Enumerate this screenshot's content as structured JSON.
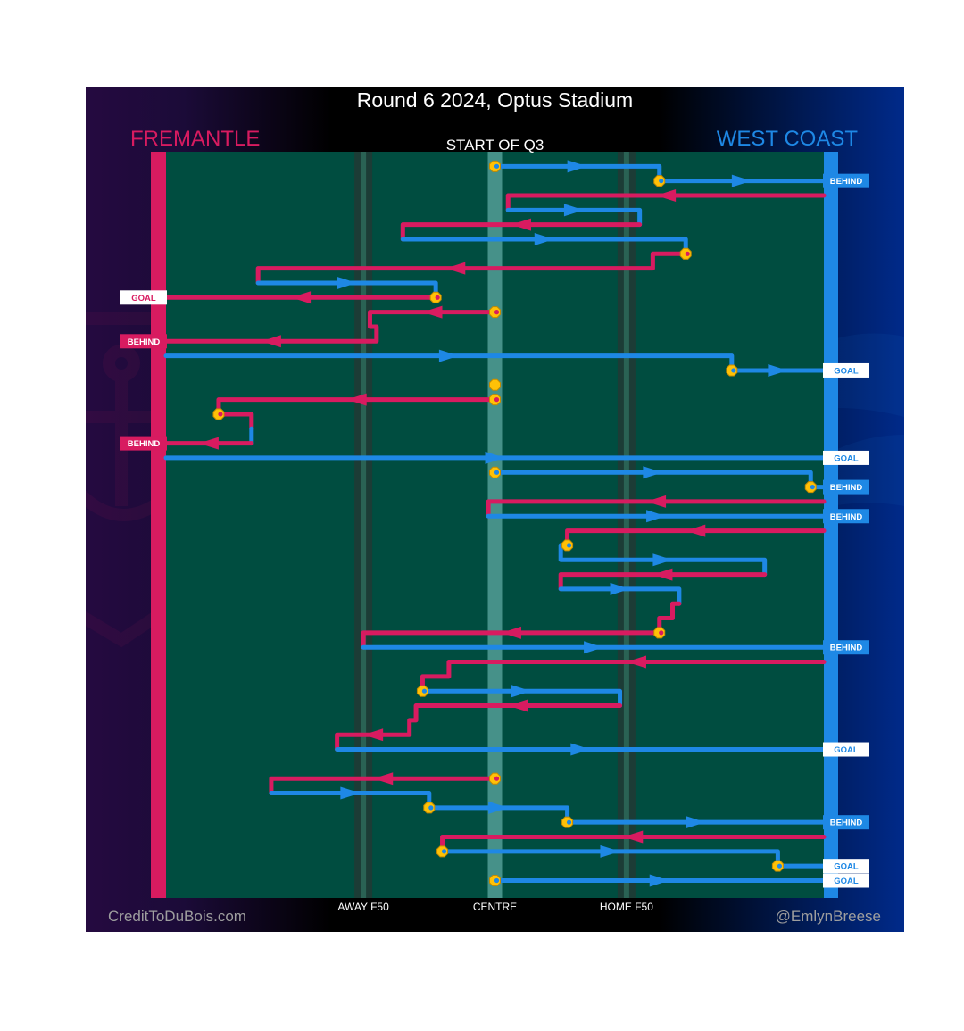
{
  "title": "Round 6 2024, Optus Stadium",
  "teams": {
    "home": {
      "name": "FREMANTLE",
      "color": "#d81b60"
    },
    "away": {
      "name": "WEST COAST",
      "color": "#1e88e5"
    }
  },
  "quarter_label": "START OF Q3",
  "credits": {
    "left": "CreditToDuBois.com",
    "right": "@EmlynBreese"
  },
  "colors": {
    "field": "#004d40",
    "ball_marker": "#ffc107",
    "centre_band": "#80cbc4"
  },
  "chart_data": {
    "type": "line",
    "title": "Round 6 2024, Optus Stadium",
    "subtitle": "START OF Q3",
    "x_ticks": [
      {
        "label": "AWAY F50",
        "value": 0.3
      },
      {
        "label": "CENTRE",
        "value": 0.5
      },
      {
        "label": "HOME F50",
        "value": 0.7
      }
    ],
    "xlim": [
      0,
      1
    ],
    "chains": [
      {
        "team": "away",
        "points": [
          [
            0.5,
            1
          ],
          [
            0.75,
            1
          ],
          [
            0.75,
            2
          ],
          [
            1,
            2
          ]
        ],
        "result": "BEHIND"
      },
      {
        "team": "home",
        "points": [
          [
            1,
            3
          ],
          [
            0.52,
            3
          ],
          [
            0.52,
            4
          ]
        ]
      },
      {
        "team": "away",
        "points": [
          [
            0.52,
            4
          ],
          [
            0.72,
            4
          ],
          [
            0.72,
            5
          ]
        ]
      },
      {
        "team": "home",
        "points": [
          [
            0.72,
            5
          ],
          [
            0.36,
            5
          ],
          [
            0.36,
            6
          ]
        ]
      },
      {
        "team": "away",
        "points": [
          [
            0.36,
            6
          ],
          [
            0.79,
            6
          ],
          [
            0.79,
            7
          ]
        ]
      },
      {
        "team": "home",
        "points": [
          [
            0.79,
            7
          ],
          [
            0.74,
            7
          ],
          [
            0.74,
            8
          ],
          [
            0.14,
            8
          ],
          [
            0.14,
            9
          ]
        ]
      },
      {
        "team": "away",
        "points": [
          [
            0.14,
            9
          ],
          [
            0.41,
            9
          ],
          [
            0.41,
            10
          ]
        ]
      },
      {
        "team": "home",
        "points": [
          [
            0.41,
            10
          ],
          [
            0,
            10
          ]
        ],
        "result": "GOAL"
      },
      {
        "team": "home",
        "points": [
          [
            0.5,
            11
          ],
          [
            0.31,
            11
          ],
          [
            0.31,
            12
          ],
          [
            0.32,
            12
          ],
          [
            0.32,
            13
          ],
          [
            0,
            13
          ]
        ],
        "result": "BEHIND"
      },
      {
        "team": "away",
        "points": [
          [
            0,
            14
          ],
          [
            0.86,
            14
          ],
          [
            0.86,
            15
          ],
          [
            1,
            15
          ]
        ],
        "result": "GOAL"
      },
      {
        "team": "home",
        "points": [
          [
            0.5,
            17
          ],
          [
            0.08,
            17
          ],
          [
            0.08,
            18
          ],
          [
            0.13,
            18
          ],
          [
            0.13,
            19
          ]
        ]
      },
      {
        "team": "away",
        "points": [
          [
            0.13,
            19
          ],
          [
            0.13,
            20
          ]
        ]
      },
      {
        "team": "home",
        "points": [
          [
            0.13,
            20
          ],
          [
            0,
            20
          ]
        ],
        "result": "BEHIND"
      },
      {
        "team": "away",
        "points": [
          [
            0,
            21
          ],
          [
            1,
            21
          ]
        ],
        "result": "GOAL"
      },
      {
        "team": "away",
        "points": [
          [
            0.5,
            22
          ],
          [
            0.98,
            22
          ],
          [
            0.98,
            23
          ],
          [
            1,
            23
          ]
        ],
        "result": "BEHIND"
      },
      {
        "team": "home",
        "points": [
          [
            1,
            24
          ],
          [
            0.49,
            24
          ],
          [
            0.49,
            25
          ]
        ]
      },
      {
        "team": "away",
        "points": [
          [
            0.49,
            25
          ],
          [
            1,
            25
          ]
        ],
        "result": "BEHIND"
      },
      {
        "team": "home",
        "points": [
          [
            1,
            26
          ],
          [
            0.61,
            26
          ],
          [
            0.61,
            27
          ]
        ]
      },
      {
        "team": "away",
        "points": [
          [
            0.61,
            27
          ],
          [
            0.6,
            27
          ],
          [
            0.6,
            28
          ],
          [
            0.91,
            28
          ],
          [
            0.91,
            29
          ]
        ]
      },
      {
        "team": "home",
        "points": [
          [
            0.91,
            29
          ],
          [
            0.6,
            29
          ],
          [
            0.6,
            30
          ]
        ]
      },
      {
        "team": "away",
        "points": [
          [
            0.6,
            30
          ],
          [
            0.78,
            30
          ],
          [
            0.78,
            31
          ]
        ]
      },
      {
        "team": "home",
        "points": [
          [
            0.78,
            31
          ],
          [
            0.77,
            31
          ],
          [
            0.77,
            32
          ],
          [
            0.75,
            32
          ],
          [
            0.75,
            33
          ],
          [
            0.3,
            33
          ],
          [
            0.3,
            34
          ]
        ]
      },
      {
        "team": "away",
        "points": [
          [
            0.3,
            34
          ],
          [
            1,
            34
          ]
        ],
        "result": "BEHIND"
      },
      {
        "team": "home",
        "points": [
          [
            1,
            35
          ],
          [
            0.43,
            35
          ],
          [
            0.43,
            36
          ],
          [
            0.39,
            36
          ],
          [
            0.39,
            37
          ]
        ]
      },
      {
        "team": "away",
        "points": [
          [
            0.39,
            37
          ],
          [
            0.69,
            37
          ],
          [
            0.69,
            38
          ]
        ]
      },
      {
        "team": "home",
        "points": [
          [
            0.69,
            38
          ],
          [
            0.38,
            38
          ],
          [
            0.38,
            39
          ],
          [
            0.37,
            39
          ],
          [
            0.37,
            40
          ],
          [
            0.26,
            40
          ],
          [
            0.26,
            41
          ]
        ]
      },
      {
        "team": "away",
        "points": [
          [
            0.26,
            41
          ],
          [
            1,
            41
          ]
        ],
        "result": "GOAL"
      },
      {
        "team": "home",
        "points": [
          [
            0.5,
            43
          ],
          [
            0.16,
            43
          ],
          [
            0.16,
            44
          ]
        ]
      },
      {
        "team": "away",
        "points": [
          [
            0.16,
            44
          ],
          [
            0.4,
            44
          ],
          [
            0.4,
            45
          ],
          [
            0.61,
            45
          ],
          [
            0.61,
            46
          ],
          [
            1,
            46
          ]
        ],
        "result": "BEHIND"
      },
      {
        "team": "home",
        "points": [
          [
            1,
            47
          ],
          [
            0.42,
            47
          ],
          [
            0.42,
            48
          ]
        ]
      },
      {
        "team": "away",
        "points": [
          [
            0.42,
            48
          ],
          [
            0.93,
            48
          ],
          [
            0.93,
            49
          ],
          [
            1,
            49
          ]
        ],
        "result": "GOAL"
      },
      {
        "team": "away",
        "points": [
          [
            0.5,
            50
          ],
          [
            1,
            50
          ]
        ],
        "result": "GOAL"
      }
    ],
    "ball_ups": [
      1,
      2,
      7,
      10,
      11,
      15,
      16,
      17,
      18,
      22,
      23,
      27,
      33,
      37,
      43,
      45,
      46,
      48,
      49,
      50
    ]
  }
}
